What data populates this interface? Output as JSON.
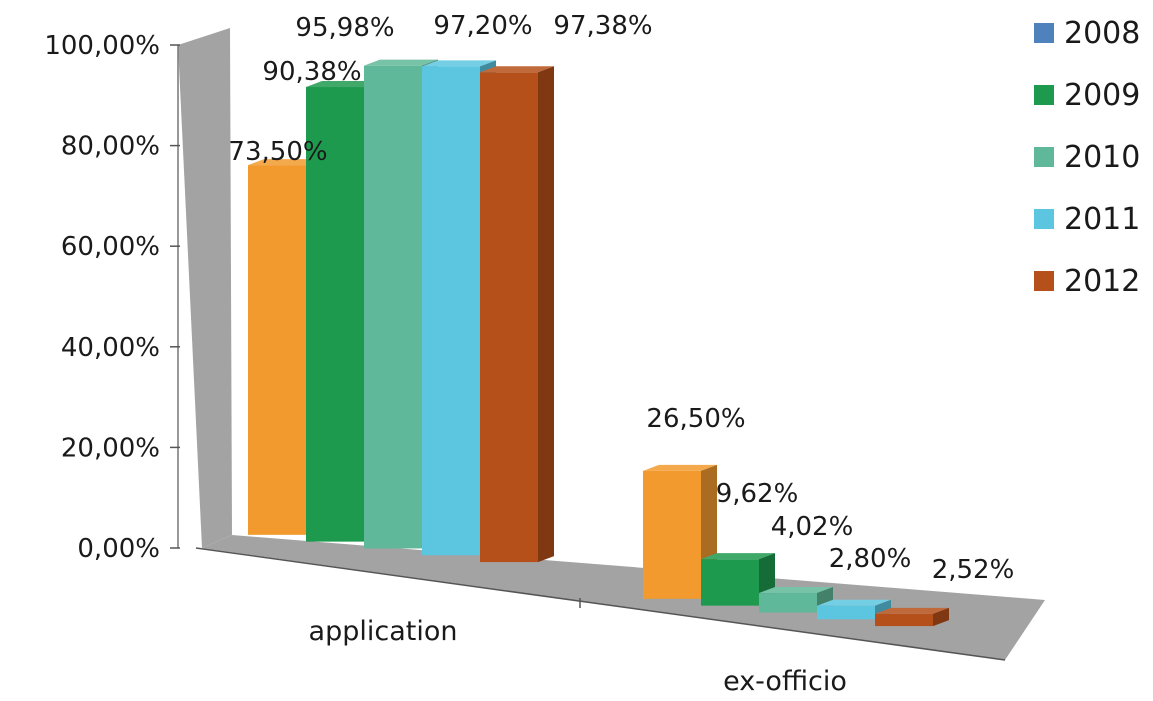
{
  "chart_data": {
    "type": "bar",
    "title": "",
    "xlabel": "",
    "ylabel": "",
    "ylim": [
      0,
      100
    ],
    "y_ticks": [
      "0,00%",
      "20,00%",
      "40,00%",
      "60,00%",
      "80,00%",
      "100,00%"
    ],
    "categories": [
      "application",
      "ex-officio"
    ],
    "series": [
      {
        "name": "2008",
        "color": "#4f81bd",
        "values": [
          73.5,
          26.5
        ],
        "labels": [
          "73,50%",
          "26,50%"
        ],
        "bar_color": "#f29a2e"
      },
      {
        "name": "2009",
        "color": "#1e9a4f",
        "values": [
          90.38,
          9.62
        ],
        "labels": [
          "90,38%",
          "9,62%"
        ],
        "bar_color": "#1e9a4f"
      },
      {
        "name": "2010",
        "color": "#5fb899",
        "values": [
          95.98,
          4.02
        ],
        "labels": [
          "95,98%",
          "4,02%"
        ],
        "bar_color": "#5fb899"
      },
      {
        "name": "2011",
        "color": "#5cc6e0",
        "values": [
          97.2,
          2.8
        ],
        "labels": [
          "97,20%",
          "2,80%"
        ],
        "bar_color": "#5cc6e0"
      },
      {
        "name": "2012",
        "color": "#b5501a",
        "values": [
          97.38,
          2.52
        ],
        "labels": [
          "97,38%",
          "2,52%"
        ],
        "bar_color": "#b5501a"
      }
    ],
    "legend_position": "top-right",
    "grid": false,
    "style": "3d-clustered-column"
  }
}
